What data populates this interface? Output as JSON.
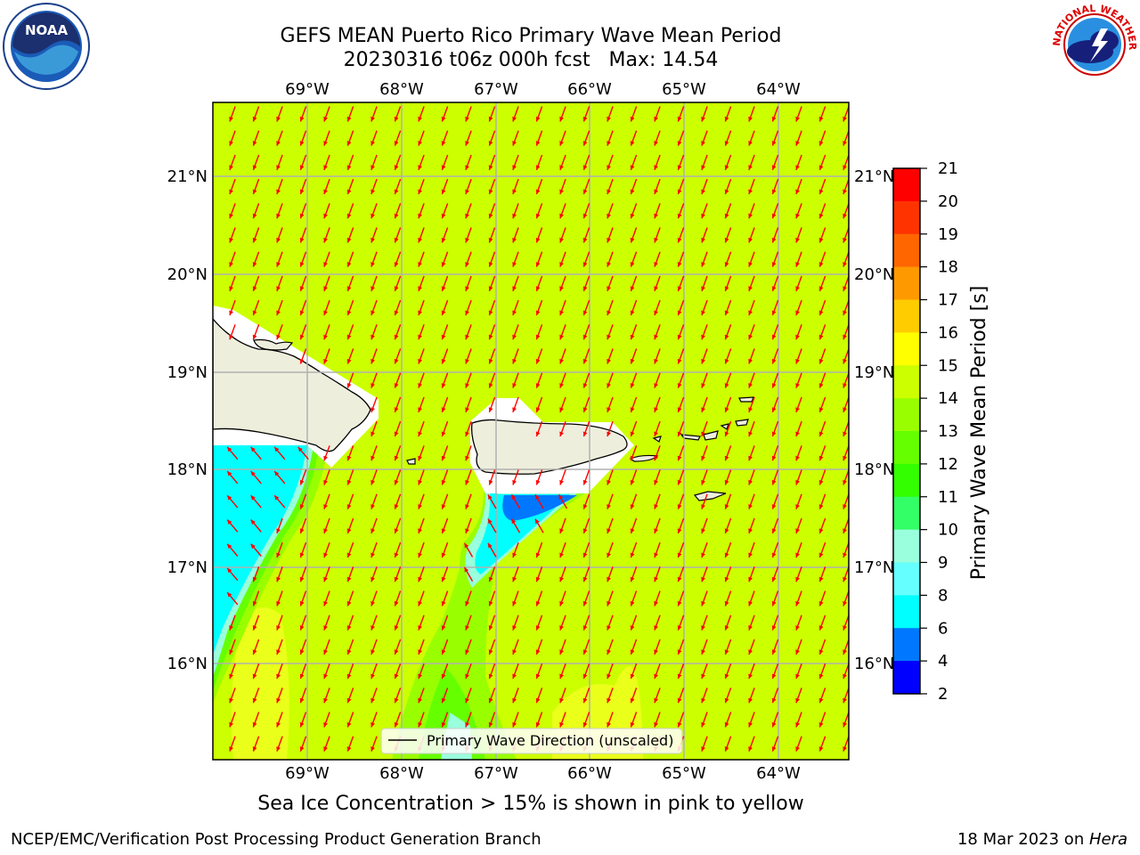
{
  "title": {
    "line1": "GEFS MEAN Puerto Rico Primary Wave Mean Period",
    "line2": "20230316 t06z 000h fcst   Max: 14.54"
  },
  "map": {
    "lon_ticks": [
      "69°W",
      "68°W",
      "67°W",
      "66°W",
      "65°W",
      "64°W"
    ],
    "lat_ticks": [
      "21°N",
      "20°N",
      "19°N",
      "18°N",
      "17°N",
      "16°N"
    ],
    "legend_label": "Primary Wave Direction (unscaled)",
    "field_color": "#ccff00",
    "land_color": "#eeeedd",
    "arrow_color": "#ff0000"
  },
  "colorbar": {
    "label": "Primary Wave Mean Period [s]",
    "ticks": [
      "21",
      "20",
      "19",
      "18",
      "17",
      "16",
      "15",
      "14",
      "13",
      "12",
      "11",
      "10",
      "9",
      "8",
      "6",
      "4",
      "2"
    ],
    "colors": [
      "#ff0000",
      "#ff3300",
      "#ff6600",
      "#ff9900",
      "#ffcc00",
      "#ffff00",
      "#ccff00",
      "#99ff00",
      "#66ff00",
      "#33ff00",
      "#33ff66",
      "#99ffdd",
      "#66ffff",
      "#00ffff",
      "#0077ff",
      "#0000ff"
    ]
  },
  "notes": {
    "ice": "Sea Ice Concentration > 15% is shown in pink to yellow"
  },
  "footer": {
    "left": "NCEP/EMC/Verification Post Processing Product Generation Branch",
    "right_date": "18 Mar 2023 on ",
    "right_host": "Hera"
  },
  "logos": {
    "noaa_text": "NOAA",
    "nws_text": "NATIONAL WEATHER SERVICE"
  }
}
